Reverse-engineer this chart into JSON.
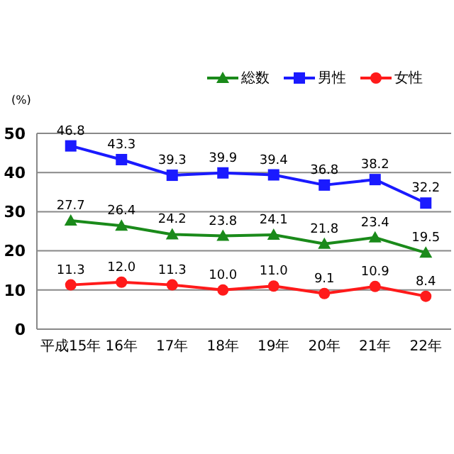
{
  "chart_data": {
    "type": "line",
    "ylabel": "(%)",
    "categories": [
      "平成15年",
      "16年",
      "17年",
      "18年",
      "19年",
      "20年",
      "21年",
      "22年"
    ],
    "series": [
      {
        "name": "総数",
        "color": "#1a8a1a",
        "marker": "triangle",
        "values": [
          27.7,
          26.4,
          24.2,
          23.8,
          24.1,
          21.8,
          23.4,
          19.5
        ],
        "value_labels": [
          "27.7",
          "26.4",
          "24.2",
          "23.8",
          "24.1",
          "21.8",
          "23.4",
          "19.5"
        ]
      },
      {
        "name": "男性",
        "color": "#1a1aff",
        "marker": "square",
        "values": [
          46.8,
          43.3,
          39.3,
          39.9,
          39.4,
          36.8,
          38.2,
          32.2
        ],
        "value_labels": [
          "46.8",
          "43.3",
          "39.3",
          "39.9",
          "39.4",
          "36.8",
          "38.2",
          "32.2"
        ]
      },
      {
        "name": "女性",
        "color": "#ff1a1a",
        "marker": "circle",
        "values": [
          11.3,
          12.0,
          11.3,
          10.0,
          11.0,
          9.1,
          10.9,
          8.4
        ],
        "value_labels": [
          "11.3",
          "12.0",
          "11.3",
          "10.0",
          "11.0",
          "9.1",
          "10.9",
          "8.4"
        ]
      }
    ],
    "ylim": [
      0,
      50
    ],
    "yticks": [
      0,
      10,
      20,
      30,
      40,
      50
    ],
    "grid": "y",
    "legend": "top right"
  }
}
